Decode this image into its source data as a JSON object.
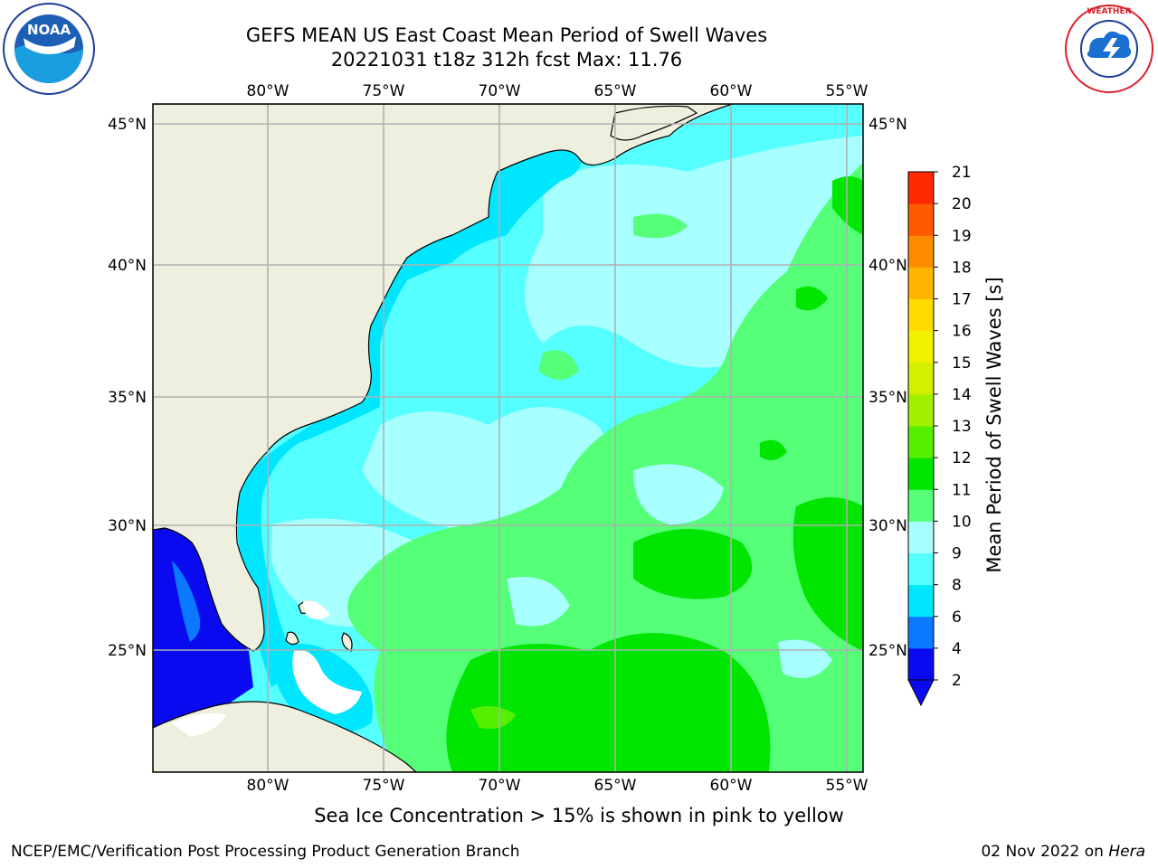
{
  "title": {
    "line1": "GEFS MEAN US East Coast Mean Period of Swell Waves",
    "line2": "20221031 t18z 312h fcst   Max: 11.76"
  },
  "map": {
    "lon_labels": [
      "80°W",
      "75°W",
      "70°W",
      "65°W",
      "60°W",
      "55°W"
    ],
    "lat_labels": [
      "45°N",
      "40°N",
      "35°N",
      "30°N",
      "25°N"
    ],
    "land_color": "#efefdf",
    "grid_color": "#b0b0b0"
  },
  "colorbar": {
    "label": "Mean Period of Swell Waves [s]",
    "ticks": [
      "2",
      "4",
      "6",
      "8",
      "9",
      "10",
      "11",
      "12",
      "13",
      "14",
      "15",
      "16",
      "17",
      "18",
      "19",
      "20",
      "21"
    ],
    "colors": [
      "#0a0af0",
      "#0a78ff",
      "#00e6ff",
      "#55ffff",
      "#a8ffff",
      "#55ff78",
      "#00e600",
      "#55f000",
      "#a0f000",
      "#d2f000",
      "#f0f000",
      "#ffdc00",
      "#ffb400",
      "#ff8c00",
      "#ff5a00",
      "#ff2800"
    ],
    "under_color": "#0a0af0"
  },
  "footer": {
    "note": "Sea Ice Concentration > 15% is shown in pink to yellow",
    "credit": "NCEP/EMC/Verification Post Processing Product Generation Branch",
    "date": "02 Nov 2022 on",
    "machine": "Hera"
  },
  "logos": {
    "left": "noaa-logo",
    "right": "nws-logo"
  }
}
